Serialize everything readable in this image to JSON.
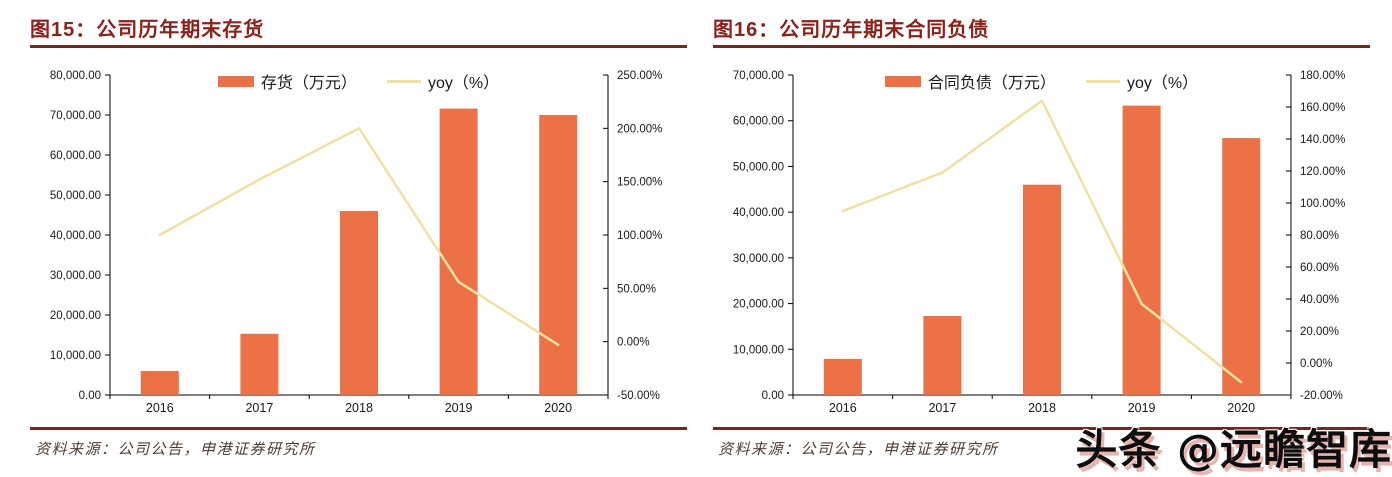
{
  "figures": [
    {
      "title": "图15：公司历年期末存货",
      "source": "资料来源：公司公告，申港证券研究所"
    },
    {
      "title": "图16：公司历年期末合同负债",
      "source": "资料来源：公司公告，申港证券研究所"
    }
  ],
  "watermark": {
    "text": "头条 @远瞻智库"
  },
  "colors": {
    "title": "#8B211A",
    "rule": "#6E2A1E",
    "bar": "#ED7146",
    "line": "#EDE2A2",
    "axis": "#000000",
    "tick_label": "#1a1a1a",
    "source_text": "#4F3D34",
    "watermark": "#0D0D0D"
  },
  "chart_data": [
    {
      "type": "bar+line",
      "title": "图15：公司历年期末存货",
      "categories": [
        "2016",
        "2017",
        "2018",
        "2019",
        "2020"
      ],
      "series": [
        {
          "name": "存货（万元）",
          "type": "bar",
          "axis": "left",
          "color": "#ED7146",
          "values": [
            6000,
            15300,
            46000,
            71600,
            70000
          ]
        },
        {
          "name": "yoy（%）",
          "type": "line",
          "axis": "right",
          "color": "#EDE2A2",
          "values": [
            100,
            152,
            200,
            56,
            -3
          ]
        }
      ],
      "left_axis": {
        "min": 0,
        "max": 80000,
        "step": 10000,
        "tick_labels": [
          "0.00",
          "10,000.00",
          "20,000.00",
          "30,000.00",
          "40,000.00",
          "50,000.00",
          "60,000.00",
          "70,000.00",
          "80,000.00"
        ]
      },
      "right_axis": {
        "min": -50,
        "max": 250,
        "step": 50,
        "tick_labels": [
          "-50.00%",
          "0.00%",
          "50.00%",
          "100.00%",
          "150.00%",
          "200.00%",
          "250.00%"
        ]
      },
      "grid": false,
      "legend_position": "top"
    },
    {
      "type": "bar+line",
      "title": "图16：公司历年期末合同负债",
      "categories": [
        "2016",
        "2017",
        "2018",
        "2019",
        "2020"
      ],
      "series": [
        {
          "name": "合同负债（万元）",
          "type": "bar",
          "axis": "left",
          "color": "#ED7146",
          "values": [
            7900,
            17300,
            46000,
            63300,
            56200
          ]
        },
        {
          "name": "yoy（%）",
          "type": "line",
          "axis": "right",
          "color": "#EDE2A2",
          "values": [
            95,
            119,
            164,
            37,
            -12
          ]
        }
      ],
      "left_axis": {
        "min": 0,
        "max": 70000,
        "step": 10000,
        "tick_labels": [
          "0.00",
          "10,000.00",
          "20,000.00",
          "30,000.00",
          "40,000.00",
          "50,000.00",
          "60,000.00",
          "70,000.00"
        ]
      },
      "right_axis": {
        "min": -20,
        "max": 180,
        "step": 20,
        "tick_labels": [
          "-20.00%",
          "0.00%",
          "20.00%",
          "40.00%",
          "60.00%",
          "80.00%",
          "100.00%",
          "120.00%",
          "140.00%",
          "160.00%",
          "180.00%"
        ]
      },
      "grid": false,
      "legend_position": "top"
    }
  ]
}
